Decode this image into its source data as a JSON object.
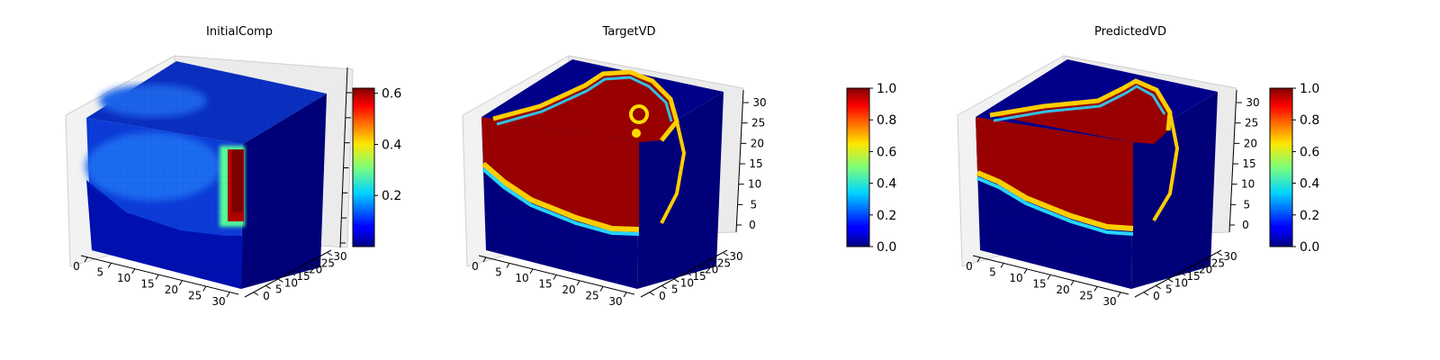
{
  "chart_data": [
    {
      "type": "heatmap",
      "title": "InitialComp",
      "x_ticks": [
        "0",
        "5",
        "10",
        "15",
        "20",
        "25",
        "30"
      ],
      "y_ticks": [
        "0",
        "5",
        "10",
        "15",
        "20",
        "25",
        "30"
      ],
      "z_ticks": [],
      "colorbar": {
        "min": 0.0,
        "max": 0.62,
        "ticks": [
          "0.2",
          "0.4",
          "0.6"
        ],
        "tick_values": [
          0.2,
          0.4,
          0.6
        ]
      },
      "surface_level": {
        "top": 0.12,
        "front": 0.15,
        "front_bottom": 0.03,
        "side": 0.04,
        "hot_column": 0.62
      }
    },
    {
      "type": "heatmap",
      "title": "TargetVD",
      "x_ticks": [
        "0",
        "5",
        "10",
        "15",
        "20",
        "25",
        "30"
      ],
      "y_ticks": [
        "0",
        "5",
        "10",
        "15",
        "20",
        "25",
        "30"
      ],
      "z_ticks": [
        "0",
        "5",
        "10",
        "15",
        "20",
        "25",
        "30"
      ],
      "colorbar": {
        "min": 0.0,
        "max": 1.0,
        "ticks": [
          "0.0",
          "0.2",
          "0.4",
          "0.6",
          "0.8",
          "1.0"
        ],
        "tick_values": [
          0.0,
          0.2,
          0.4,
          0.6,
          0.8,
          1.0
        ]
      },
      "surface_level": {
        "top": 0.0,
        "front_upper": 1.0,
        "front_lower": 0.0,
        "side": 0.0
      }
    },
    {
      "type": "heatmap",
      "title": "PredictedVD",
      "x_ticks": [
        "0",
        "5",
        "10",
        "15",
        "20",
        "25",
        "30"
      ],
      "y_ticks": [
        "0",
        "5",
        "10",
        "15",
        "20",
        "25",
        "30"
      ],
      "z_ticks": [
        "0",
        "5",
        "10",
        "15",
        "20",
        "25",
        "30"
      ],
      "colorbar": {
        "min": 0.0,
        "max": 1.0,
        "ticks": [
          "0.0",
          "0.2",
          "0.4",
          "0.6",
          "0.8",
          "1.0"
        ],
        "tick_values": [
          0.0,
          0.2,
          0.4,
          0.6,
          0.8,
          1.0
        ]
      },
      "surface_level": {
        "top": 0.0,
        "front_upper": 1.0,
        "front_lower": 0.0,
        "side": 0.0
      }
    }
  ]
}
